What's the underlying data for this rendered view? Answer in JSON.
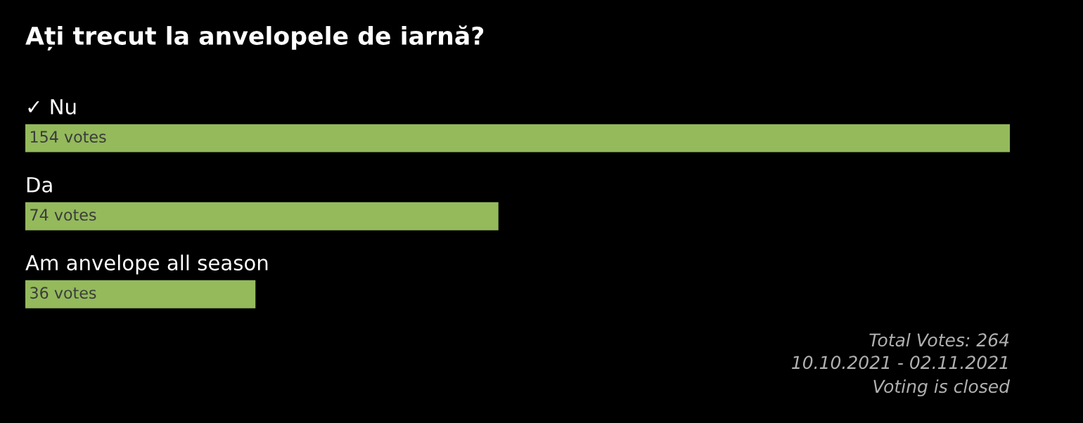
{
  "chart_data": {
    "type": "bar",
    "orientation": "horizontal",
    "title": "Ați trecut la anvelopele de iarnă?",
    "categories": [
      "✓ Nu",
      "Da",
      "Am anvelope all season"
    ],
    "values": [
      154,
      74,
      36
    ],
    "value_labels": [
      "154 votes",
      "74 votes",
      "36 votes"
    ],
    "color": "#94ba5c",
    "xlim": [
      0,
      154
    ],
    "legend": false,
    "annotations": [
      "Total Votes: 264",
      "10.10.2021 - 02.11.2021",
      "Voting is closed"
    ]
  }
}
